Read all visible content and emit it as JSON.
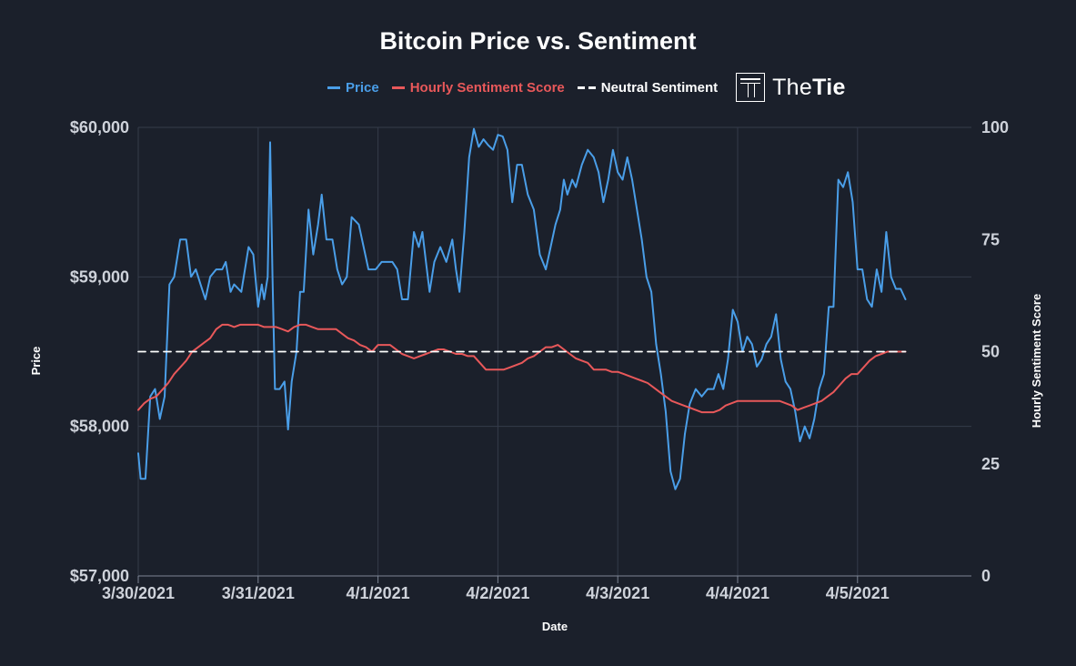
{
  "chart_data": {
    "type": "line",
    "title": "Bitcoin Price vs. Sentiment",
    "xlabel": "Date",
    "ylabel_left": "Price",
    "ylabel_right": "Hourly Sentiment Score",
    "x_tick_labels": [
      "3/30/2021",
      "3/31/2021",
      "4/1/2021",
      "4/2/2021",
      "4/3/2021",
      "4/4/2021",
      "4/5/2021"
    ],
    "x_range_days": [
      0,
      6.95
    ],
    "y_left": {
      "ylim": [
        57000,
        60000
      ],
      "tick_values": [
        57000,
        58000,
        59000,
        60000
      ],
      "tick_labels": [
        "$57,000",
        "$58,000",
        "$59,000",
        "$60,000"
      ]
    },
    "y_right": {
      "ylim": [
        0,
        100
      ],
      "tick_values": [
        0,
        25,
        50,
        75,
        100
      ],
      "tick_labels": [
        "0",
        "25",
        "50",
        "75",
        "100"
      ]
    },
    "grid": true,
    "legend_position": "top-center",
    "series": [
      {
        "name": "Price",
        "axis": "left",
        "color": "#4a9ee8",
        "points": [
          [
            0.0,
            57820
          ],
          [
            0.02,
            57650
          ],
          [
            0.06,
            57650
          ],
          [
            0.1,
            58200
          ],
          [
            0.14,
            58250
          ],
          [
            0.18,
            58050
          ],
          [
            0.22,
            58200
          ],
          [
            0.26,
            58950
          ],
          [
            0.3,
            59000
          ],
          [
            0.35,
            59250
          ],
          [
            0.4,
            59250
          ],
          [
            0.44,
            59000
          ],
          [
            0.48,
            59050
          ],
          [
            0.52,
            58950
          ],
          [
            0.56,
            58850
          ],
          [
            0.6,
            59000
          ],
          [
            0.65,
            59050
          ],
          [
            0.7,
            59050
          ],
          [
            0.73,
            59100
          ],
          [
            0.77,
            58900
          ],
          [
            0.8,
            58950
          ],
          [
            0.86,
            58900
          ],
          [
            0.92,
            59200
          ],
          [
            0.96,
            59150
          ],
          [
            1.0,
            58800
          ],
          [
            1.03,
            58950
          ],
          [
            1.05,
            58850
          ],
          [
            1.08,
            59000
          ],
          [
            1.1,
            59900
          ],
          [
            1.12,
            59000
          ],
          [
            1.14,
            58250
          ],
          [
            1.18,
            58250
          ],
          [
            1.22,
            58300
          ],
          [
            1.25,
            57980
          ],
          [
            1.28,
            58300
          ],
          [
            1.32,
            58500
          ],
          [
            1.35,
            58900
          ],
          [
            1.38,
            58900
          ],
          [
            1.42,
            59450
          ],
          [
            1.46,
            59150
          ],
          [
            1.5,
            59350
          ],
          [
            1.53,
            59550
          ],
          [
            1.57,
            59250
          ],
          [
            1.62,
            59250
          ],
          [
            1.66,
            59050
          ],
          [
            1.7,
            58950
          ],
          [
            1.74,
            59000
          ],
          [
            1.78,
            59400
          ],
          [
            1.84,
            59350
          ],
          [
            1.88,
            59200
          ],
          [
            1.92,
            59050
          ],
          [
            1.98,
            59050
          ],
          [
            2.03,
            59100
          ],
          [
            2.08,
            59100
          ],
          [
            2.12,
            59100
          ],
          [
            2.16,
            59050
          ],
          [
            2.2,
            58850
          ],
          [
            2.25,
            58850
          ],
          [
            2.3,
            59300
          ],
          [
            2.34,
            59200
          ],
          [
            2.37,
            59300
          ],
          [
            2.4,
            59100
          ],
          [
            2.43,
            58900
          ],
          [
            2.47,
            59100
          ],
          [
            2.52,
            59200
          ],
          [
            2.57,
            59100
          ],
          [
            2.62,
            59250
          ],
          [
            2.65,
            59050
          ],
          [
            2.68,
            58900
          ],
          [
            2.72,
            59300
          ],
          [
            2.76,
            59800
          ],
          [
            2.8,
            59990
          ],
          [
            2.84,
            59870
          ],
          [
            2.88,
            59920
          ],
          [
            2.92,
            59880
          ],
          [
            2.96,
            59850
          ],
          [
            3.0,
            59950
          ],
          [
            3.04,
            59940
          ],
          [
            3.08,
            59850
          ],
          [
            3.12,
            59500
          ],
          [
            3.16,
            59750
          ],
          [
            3.2,
            59750
          ],
          [
            3.25,
            59550
          ],
          [
            3.3,
            59450
          ],
          [
            3.35,
            59150
          ],
          [
            3.4,
            59050
          ],
          [
            3.44,
            59200
          ],
          [
            3.48,
            59350
          ],
          [
            3.52,
            59450
          ],
          [
            3.55,
            59650
          ],
          [
            3.58,
            59550
          ],
          [
            3.62,
            59650
          ],
          [
            3.65,
            59600
          ],
          [
            3.7,
            59750
          ],
          [
            3.75,
            59850
          ],
          [
            3.8,
            59800
          ],
          [
            3.84,
            59700
          ],
          [
            3.88,
            59500
          ],
          [
            3.92,
            59650
          ],
          [
            3.96,
            59850
          ],
          [
            4.0,
            59700
          ],
          [
            4.04,
            59650
          ],
          [
            4.08,
            59800
          ],
          [
            4.12,
            59650
          ],
          [
            4.16,
            59450
          ],
          [
            4.2,
            59250
          ],
          [
            4.24,
            59000
          ],
          [
            4.28,
            58900
          ],
          [
            4.32,
            58550
          ],
          [
            4.36,
            58350
          ],
          [
            4.4,
            58100
          ],
          [
            4.44,
            57700
          ],
          [
            4.48,
            57580
          ],
          [
            4.52,
            57650
          ],
          [
            4.56,
            57950
          ],
          [
            4.6,
            58150
          ],
          [
            4.65,
            58250
          ],
          [
            4.7,
            58200
          ],
          [
            4.75,
            58250
          ],
          [
            4.8,
            58250
          ],
          [
            4.84,
            58350
          ],
          [
            4.88,
            58250
          ],
          [
            4.92,
            58450
          ],
          [
            4.96,
            58780
          ],
          [
            5.0,
            58700
          ],
          [
            5.04,
            58500
          ],
          [
            5.08,
            58600
          ],
          [
            5.12,
            58550
          ],
          [
            5.16,
            58400
          ],
          [
            5.2,
            58450
          ],
          [
            5.24,
            58550
          ],
          [
            5.28,
            58600
          ],
          [
            5.32,
            58750
          ],
          [
            5.36,
            58450
          ],
          [
            5.4,
            58300
          ],
          [
            5.44,
            58250
          ],
          [
            5.48,
            58100
          ],
          [
            5.52,
            57900
          ],
          [
            5.56,
            58000
          ],
          [
            5.6,
            57920
          ],
          [
            5.64,
            58050
          ],
          [
            5.68,
            58250
          ],
          [
            5.72,
            58350
          ],
          [
            5.76,
            58800
          ],
          [
            5.8,
            58800
          ],
          [
            5.84,
            59650
          ],
          [
            5.88,
            59600
          ],
          [
            5.92,
            59700
          ],
          [
            5.96,
            59500
          ],
          [
            6.0,
            59050
          ],
          [
            6.04,
            59050
          ],
          [
            6.08,
            58850
          ],
          [
            6.12,
            58800
          ],
          [
            6.16,
            59050
          ],
          [
            6.2,
            58900
          ],
          [
            6.24,
            59300
          ],
          [
            6.28,
            59000
          ],
          [
            6.32,
            58920
          ],
          [
            6.36,
            58920
          ],
          [
            6.4,
            58850
          ]
        ]
      },
      {
        "name": "Hourly Sentiment Score",
        "axis": "right",
        "color": "#e8585a",
        "points": [
          [
            0.0,
            37
          ],
          [
            0.05,
            38.5
          ],
          [
            0.1,
            39.5
          ],
          [
            0.15,
            40
          ],
          [
            0.2,
            41.5
          ],
          [
            0.25,
            43
          ],
          [
            0.3,
            45
          ],
          [
            0.35,
            46.5
          ],
          [
            0.4,
            48
          ],
          [
            0.45,
            50
          ],
          [
            0.5,
            51
          ],
          [
            0.55,
            52
          ],
          [
            0.6,
            53
          ],
          [
            0.65,
            55
          ],
          [
            0.7,
            56
          ],
          [
            0.75,
            56
          ],
          [
            0.8,
            55.5
          ],
          [
            0.85,
            56
          ],
          [
            0.9,
            56
          ],
          [
            0.95,
            56
          ],
          [
            1.0,
            56
          ],
          [
            1.05,
            55.5
          ],
          [
            1.1,
            55.5
          ],
          [
            1.15,
            55.5
          ],
          [
            1.2,
            55
          ],
          [
            1.25,
            54.5
          ],
          [
            1.3,
            55.5
          ],
          [
            1.35,
            56
          ],
          [
            1.4,
            56
          ],
          [
            1.45,
            55.5
          ],
          [
            1.5,
            55
          ],
          [
            1.55,
            55
          ],
          [
            1.6,
            55
          ],
          [
            1.65,
            55
          ],
          [
            1.7,
            54
          ],
          [
            1.75,
            53
          ],
          [
            1.8,
            52.5
          ],
          [
            1.85,
            51.5
          ],
          [
            1.9,
            51
          ],
          [
            1.95,
            50
          ],
          [
            2.0,
            51.5
          ],
          [
            2.05,
            51.5
          ],
          [
            2.1,
            51.5
          ],
          [
            2.15,
            50.5
          ],
          [
            2.2,
            49.5
          ],
          [
            2.25,
            49
          ],
          [
            2.3,
            48.5
          ],
          [
            2.35,
            49
          ],
          [
            2.4,
            49.5
          ],
          [
            2.45,
            50
          ],
          [
            2.5,
            50.5
          ],
          [
            2.55,
            50.5
          ],
          [
            2.6,
            50
          ],
          [
            2.65,
            49.5
          ],
          [
            2.7,
            49.5
          ],
          [
            2.75,
            49
          ],
          [
            2.8,
            49
          ],
          [
            2.85,
            47.5
          ],
          [
            2.9,
            46
          ],
          [
            2.95,
            46
          ],
          [
            3.0,
            46
          ],
          [
            3.05,
            46
          ],
          [
            3.1,
            46.5
          ],
          [
            3.15,
            47
          ],
          [
            3.2,
            47.5
          ],
          [
            3.25,
            48.5
          ],
          [
            3.3,
            49
          ],
          [
            3.35,
            50
          ],
          [
            3.4,
            51
          ],
          [
            3.45,
            51
          ],
          [
            3.5,
            51.5
          ],
          [
            3.55,
            50.5
          ],
          [
            3.6,
            49.5
          ],
          [
            3.65,
            48.5
          ],
          [
            3.7,
            48
          ],
          [
            3.75,
            47.5
          ],
          [
            3.8,
            46
          ],
          [
            3.85,
            46
          ],
          [
            3.9,
            46
          ],
          [
            3.95,
            45.5
          ],
          [
            4.0,
            45.5
          ],
          [
            4.05,
            45
          ],
          [
            4.1,
            44.5
          ],
          [
            4.15,
            44
          ],
          [
            4.2,
            43.5
          ],
          [
            4.25,
            43
          ],
          [
            4.3,
            42
          ],
          [
            4.35,
            41
          ],
          [
            4.4,
            40
          ],
          [
            4.45,
            39
          ],
          [
            4.5,
            38.5
          ],
          [
            4.55,
            38
          ],
          [
            4.6,
            37.5
          ],
          [
            4.65,
            37
          ],
          [
            4.7,
            36.5
          ],
          [
            4.75,
            36.5
          ],
          [
            4.8,
            36.5
          ],
          [
            4.85,
            37
          ],
          [
            4.9,
            38
          ],
          [
            4.95,
            38.5
          ],
          [
            5.0,
            39
          ],
          [
            5.05,
            39
          ],
          [
            5.1,
            39
          ],
          [
            5.15,
            39
          ],
          [
            5.2,
            39
          ],
          [
            5.25,
            39
          ],
          [
            5.3,
            39
          ],
          [
            5.35,
            39
          ],
          [
            5.4,
            38.5
          ],
          [
            5.45,
            38
          ],
          [
            5.5,
            37
          ],
          [
            5.55,
            37.5
          ],
          [
            5.6,
            38
          ],
          [
            5.65,
            38.5
          ],
          [
            5.7,
            39
          ],
          [
            5.75,
            40
          ],
          [
            5.8,
            41
          ],
          [
            5.85,
            42.5
          ],
          [
            5.9,
            44
          ],
          [
            5.95,
            45
          ],
          [
            6.0,
            45
          ],
          [
            6.05,
            46.5
          ],
          [
            6.1,
            48
          ],
          [
            6.15,
            49
          ],
          [
            6.2,
            49.5
          ],
          [
            6.25,
            50
          ],
          [
            6.3,
            50
          ],
          [
            6.35,
            50
          ],
          [
            6.4,
            50
          ]
        ]
      },
      {
        "name": "Neutral Sentiment",
        "axis": "right",
        "color": "#ffffff",
        "dashed": true,
        "points": [
          [
            0.0,
            50
          ],
          [
            6.4,
            50
          ]
        ]
      }
    ]
  },
  "brand": {
    "prefix": "The",
    "suffix": "Tie"
  }
}
